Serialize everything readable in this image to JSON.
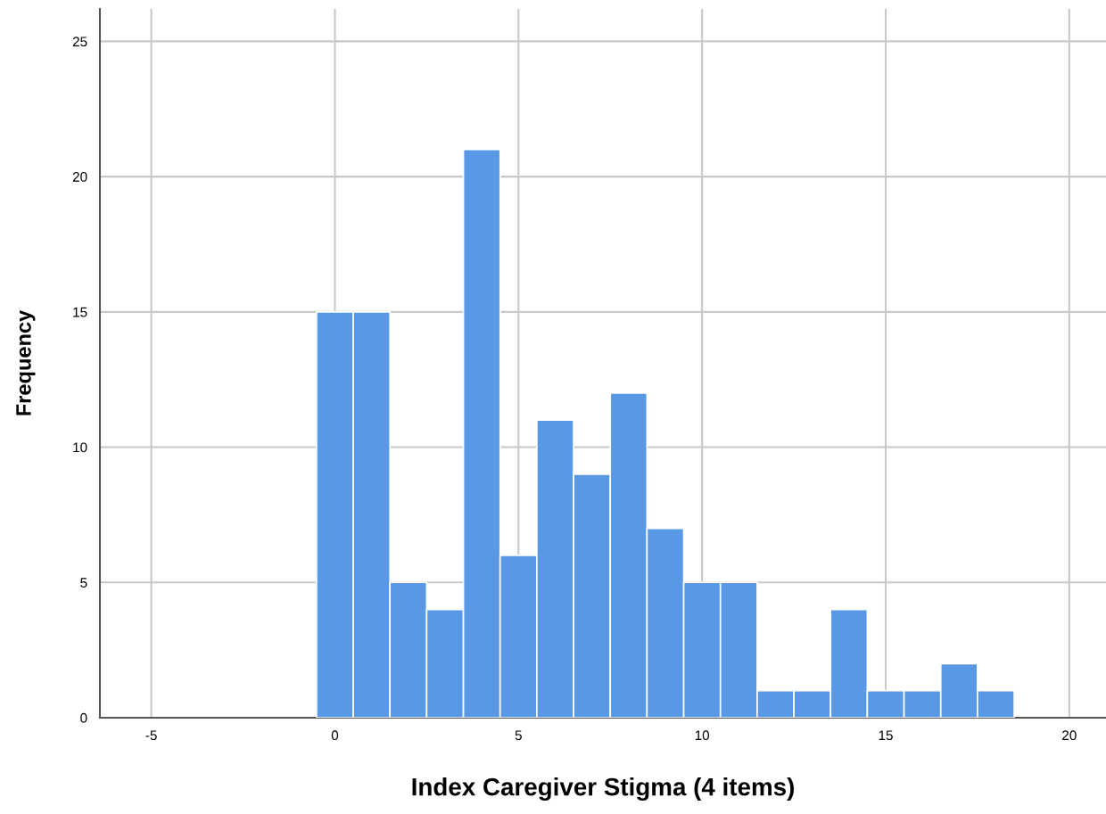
{
  "chart_data": {
    "type": "histogram",
    "xlabel": "Index Caregiver Stigma (4 items)",
    "ylabel": "Frequency",
    "bins": [
      -0.5,
      0.5,
      1.5,
      2.5,
      3.5,
      4.5,
      5.5,
      6.5,
      7.5,
      8.5,
      9.5,
      10.5,
      11.5,
      12.5,
      13.5,
      14.5,
      15.5,
      16.5,
      17.5,
      18.5
    ],
    "values": [
      15,
      15,
      5,
      4,
      21,
      6,
      11,
      9,
      12,
      7,
      5,
      5,
      1,
      1,
      4,
      1,
      1,
      2,
      1
    ],
    "color": "#5898e4",
    "xlim": [
      -6.4,
      21
    ],
    "ylim": [
      0,
      26.2
    ],
    "xticks": [
      {
        "value": -5,
        "label": "-5"
      },
      0,
      5,
      10,
      15,
      20
    ],
    "yticks": [
      0,
      5,
      10,
      15,
      20,
      25
    ],
    "grid": true
  }
}
